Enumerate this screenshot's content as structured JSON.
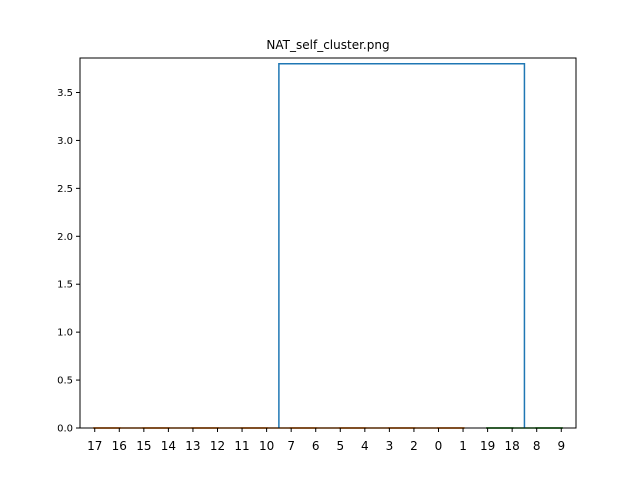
{
  "chart_data": {
    "type": "dendrogram",
    "title": "NAT_self_cluster.png",
    "xlabel": "",
    "ylabel": "",
    "leaf_labels": [
      "17",
      "16",
      "15",
      "14",
      "13",
      "12",
      "11",
      "10",
      "7",
      "6",
      "5",
      "4",
      "3",
      "2",
      "0",
      "1",
      "19",
      "18",
      "8",
      "9"
    ],
    "ylim": [
      0,
      3.86
    ],
    "yticks": [
      0.0,
      0.5,
      1.0,
      1.5,
      2.0,
      2.5,
      3.0,
      3.5
    ],
    "ytick_labels": [
      "0.0",
      "0.5",
      "1.0",
      "1.5",
      "2.0",
      "2.5",
      "3.0",
      "3.5"
    ],
    "grid": false,
    "clusters": [
      {
        "leaves": [
          "17",
          "16",
          "15",
          "14",
          "13",
          "12",
          "11",
          "10",
          "7",
          "6",
          "5",
          "4",
          "3",
          "2",
          "0",
          "1"
        ],
        "merge_height": 0.0,
        "color": "#ff7f0e"
      },
      {
        "leaves": [
          "19",
          "18",
          "8",
          "9"
        ],
        "merge_height": 0.0,
        "color": "#2ca02c"
      }
    ],
    "top_merge": {
      "height": 3.8,
      "color": "#1f77b4"
    }
  }
}
